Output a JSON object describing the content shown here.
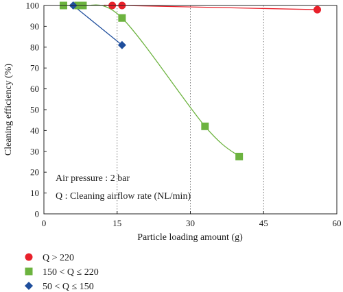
{
  "chart_data": {
    "type": "scatter",
    "title": "",
    "xlabel": "Particle loading amount (g)",
    "ylabel": "Cleaning efficiency (%)",
    "xlim": [
      0,
      60
    ],
    "ylim": [
      0,
      100
    ],
    "xticks": [
      "0",
      "15",
      "30",
      "45",
      "60"
    ],
    "yticks": [
      "0",
      "10",
      "20",
      "30",
      "40",
      "50",
      "60",
      "70",
      "80",
      "90",
      "100"
    ],
    "grid": "dotted, vertical lines at x ticks",
    "annotations": [
      "Air pressure : 2 bar",
      "Q : Cleaning airflow rate (NL/min)"
    ],
    "legend_position": "below-left",
    "series": [
      {
        "name": "Q > 220",
        "color": "#e8202a",
        "marker": "circle",
        "x": [
          14,
          16,
          56
        ],
        "y": [
          100,
          100,
          98
        ]
      },
      {
        "name": "150 < Q ≤  220",
        "color": "#6cb33f",
        "marker": "square",
        "x": [
          4,
          7,
          8,
          16,
          33,
          40
        ],
        "y": [
          100,
          100,
          100,
          94,
          42,
          27.5
        ]
      },
      {
        "name": "50 < Q ≤  150",
        "color": "#1f4e9c",
        "marker": "diamond",
        "x": [
          6,
          16
        ],
        "y": [
          100,
          81
        ]
      }
    ]
  }
}
